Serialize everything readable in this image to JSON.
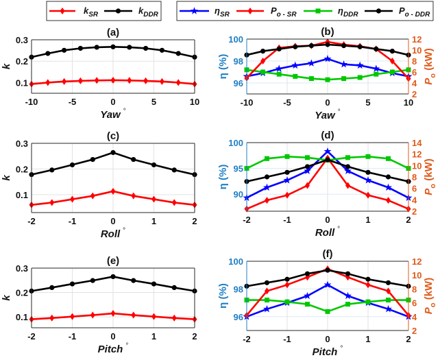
{
  "legends": {
    "left": [
      {
        "symbol": "k",
        "sub": "SR",
        "color": "#ff0000",
        "marker": "diamond"
      },
      {
        "symbol": "k",
        "sub": "DDR",
        "color": "#000000",
        "marker": "circle"
      }
    ],
    "right": [
      {
        "symbol": "η",
        "sub": "SR",
        "color": "#0000ff",
        "marker": "star"
      },
      {
        "symbol": "P",
        "sub": "o - SR",
        "color": "#ff0000",
        "marker": "diamond"
      },
      {
        "symbol": "η",
        "sub": "DDR",
        "color": "#00c800",
        "marker": "square"
      },
      {
        "symbol": "P",
        "sub": "o - DDR",
        "color": "#000000",
        "marker": "circle"
      }
    ]
  },
  "axis_colors": {
    "eta": "#1f7fc4",
    "power": "#e05a1a"
  },
  "chart_data": [
    {
      "panel": "a",
      "type": "line",
      "title": "(a)",
      "xlabel": "Yaw",
      "xunit": "°",
      "ylabel": "k",
      "x": [
        -10,
        -8,
        -6,
        -4,
        -2,
        0,
        2,
        4,
        6,
        8,
        10
      ],
      "xlim": [
        -10,
        10
      ],
      "xticks": [
        -10,
        -5,
        0,
        5,
        10
      ],
      "ylim": [
        0.05,
        0.3
      ],
      "yticks": [
        0.1,
        0.2,
        0.3
      ],
      "series": [
        {
          "name": "k_SR",
          "color": "#ff0000",
          "marker": "diamond",
          "axis": "left",
          "values": [
            0.093,
            0.1,
            0.105,
            0.108,
            0.11,
            0.111,
            0.11,
            0.108,
            0.105,
            0.1,
            0.093
          ]
        },
        {
          "name": "k_DDR",
          "color": "#000000",
          "marker": "circle",
          "axis": "left",
          "values": [
            0.219,
            0.236,
            0.251,
            0.26,
            0.265,
            0.267,
            0.265,
            0.26,
            0.251,
            0.236,
            0.219
          ]
        }
      ]
    },
    {
      "panel": "b",
      "type": "line",
      "title": "(b)",
      "xlabel": "Yaw",
      "xunit": "°",
      "ylabel": "η (%)",
      "ylabel_right": "P",
      "ylabel_right_sub": "o",
      "ylabel_right_unit": " (kW)",
      "x": [
        -10,
        -8,
        -6,
        -4,
        -2,
        0,
        2,
        4,
        6,
        8,
        10
      ],
      "xlim": [
        -10,
        10
      ],
      "xticks": [
        -10,
        -5,
        0,
        5,
        10
      ],
      "ylim": [
        95,
        100
      ],
      "yticks": [
        96,
        98,
        100
      ],
      "ylim_right": [
        2,
        12
      ],
      "yticks_right": [
        2,
        4,
        6,
        8,
        10,
        12
      ],
      "series": [
        {
          "name": "η_SR",
          "color": "#0000ff",
          "marker": "star",
          "axis": "left",
          "values": [
            96.6,
            96.9,
            97.3,
            97.6,
            97.8,
            98.2,
            97.7,
            97.6,
            97.3,
            96.9,
            96.6
          ]
        },
        {
          "name": "η_DDR",
          "color": "#00c800",
          "marker": "square",
          "axis": "left",
          "values": [
            97.2,
            97.0,
            96.8,
            96.6,
            96.4,
            96.3,
            96.4,
            96.5,
            96.8,
            97.0,
            97.2
          ]
        },
        {
          "name": "P_o-SR",
          "color": "#ff0000",
          "marker": "diamond",
          "axis": "right",
          "values": [
            4.9,
            8.0,
            10.4,
            10.7,
            10.8,
            11.5,
            11.0,
            10.7,
            10.2,
            8.0,
            4.8
          ]
        },
        {
          "name": "P_o-DDR",
          "color": "#000000",
          "marker": "circle",
          "axis": "right",
          "values": [
            9.1,
            9.8,
            10.2,
            10.6,
            10.8,
            11.0,
            10.8,
            10.6,
            10.2,
            9.8,
            9.1
          ]
        }
      ]
    },
    {
      "panel": "c",
      "type": "line",
      "title": "(c)",
      "xlabel": "Roll",
      "xunit": "°",
      "ylabel": "k",
      "x": [
        -2,
        -1.5,
        -1,
        -0.5,
        0,
        0.5,
        1,
        1.5,
        2
      ],
      "xlim": [
        -2,
        2
      ],
      "xticks": [
        -2,
        -1,
        0,
        1,
        2
      ],
      "ylim": [
        0.03,
        0.3
      ],
      "yticks": [
        0.1,
        0.2,
        0.3
      ],
      "series": [
        {
          "name": "k_SR",
          "color": "#ff0000",
          "marker": "diamond",
          "axis": "left",
          "values": [
            0.06,
            0.069,
            0.082,
            0.095,
            0.113,
            0.095,
            0.082,
            0.069,
            0.06
          ]
        },
        {
          "name": "k_DDR",
          "color": "#000000",
          "marker": "circle",
          "axis": "left",
          "values": [
            0.178,
            0.196,
            0.216,
            0.237,
            0.264,
            0.237,
            0.216,
            0.196,
            0.178
          ]
        }
      ]
    },
    {
      "panel": "d",
      "type": "line",
      "title": "(d)",
      "xlabel": "Roll",
      "xunit": "°",
      "ylabel": "η (%)",
      "ylabel_right": "P",
      "ylabel_right_sub": "o",
      "ylabel_right_unit": " (kW)",
      "x": [
        -2,
        -1.5,
        -1,
        -0.5,
        0,
        0.5,
        1,
        1.5,
        2
      ],
      "xlim": [
        -2,
        2
      ],
      "xticks": [
        -2,
        -1,
        0,
        1,
        2
      ],
      "ylim": [
        86.7,
        100
      ],
      "yticks": [
        90,
        95,
        100
      ],
      "ylim_right": [
        2,
        14
      ],
      "yticks_right": [
        2,
        4,
        6,
        8,
        10,
        12,
        14
      ],
      "series": [
        {
          "name": "η_SR",
          "color": "#0000ff",
          "marker": "star",
          "axis": "left",
          "values": [
            89.3,
            91.3,
            92.7,
            94.5,
            98.3,
            94.5,
            92.7,
            91.3,
            89.3
          ]
        },
        {
          "name": "η_DDR",
          "color": "#00c800",
          "marker": "square",
          "axis": "left",
          "values": [
            95.0,
            96.9,
            97.3,
            97.1,
            96.6,
            97.1,
            97.3,
            96.9,
            95.0
          ]
        },
        {
          "name": "P_o-SR",
          "color": "#ff0000",
          "marker": "diamond",
          "axis": "right",
          "values": [
            2.4,
            3.9,
            4.8,
            6.5,
            11.3,
            6.5,
            4.8,
            3.9,
            2.4
          ]
        },
        {
          "name": "P_o-DDR",
          "color": "#000000",
          "marker": "circle",
          "axis": "right",
          "values": [
            7.2,
            8.0,
            8.8,
            9.8,
            11.0,
            9.8,
            8.8,
            8.0,
            7.2
          ]
        }
      ]
    },
    {
      "panel": "e",
      "type": "line",
      "title": "(e)",
      "xlabel": "Pitch",
      "xunit": "°",
      "ylabel": "k",
      "x": [
        -2,
        -1.5,
        -1,
        -0.5,
        0,
        0.5,
        1,
        1.5,
        2
      ],
      "xlim": [
        -2,
        2
      ],
      "xticks": [
        -2,
        -1,
        0,
        1,
        2
      ],
      "ylim": [
        0.055,
        0.3
      ],
      "yticks": [
        0.1,
        0.2,
        0.3
      ],
      "series": [
        {
          "name": "k_SR",
          "color": "#ff0000",
          "marker": "diamond",
          "axis": "left",
          "values": [
            0.09,
            0.095,
            0.101,
            0.107,
            0.114,
            0.107,
            0.101,
            0.095,
            0.09
          ]
        },
        {
          "name": "k_DDR",
          "color": "#000000",
          "marker": "circle",
          "axis": "left",
          "values": [
            0.206,
            0.22,
            0.235,
            0.249,
            0.265,
            0.249,
            0.235,
            0.22,
            0.206
          ]
        }
      ]
    },
    {
      "panel": "f",
      "type": "line",
      "title": "(f)",
      "xlabel": "Pitch",
      "xunit": "°",
      "ylabel": "η (%)",
      "ylabel_right": "P",
      "ylabel_right_sub": "o",
      "ylabel_right_unit": " (kW)",
      "x": [
        -2,
        -1.5,
        -1,
        -0.5,
        0,
        0.5,
        1,
        1.5,
        2
      ],
      "xlim": [
        -2,
        2
      ],
      "xticks": [
        -2,
        -1,
        0,
        1,
        2
      ],
      "ylim": [
        95,
        100
      ],
      "yticks": [
        96,
        98,
        100
      ],
      "ylim_right": [
        2,
        12
      ],
      "yticks_right": [
        2,
        4,
        6,
        8,
        10,
        12
      ],
      "series": [
        {
          "name": "η_SR",
          "color": "#0000ff",
          "marker": "star",
          "axis": "left",
          "values": [
            96.0,
            96.55,
            97.0,
            97.5,
            98.3,
            97.5,
            97.0,
            96.55,
            96.0
          ]
        },
        {
          "name": "η_DDR",
          "color": "#00c800",
          "marker": "square",
          "axis": "left",
          "values": [
            97.2,
            97.2,
            97.07,
            96.9,
            96.37,
            96.9,
            97.07,
            97.2,
            97.2
          ]
        },
        {
          "name": "P_o-SR",
          "color": "#ff0000",
          "marker": "diamond",
          "axis": "right",
          "values": [
            4.2,
            7.7,
            8.6,
            9.7,
            10.9,
            9.7,
            8.6,
            7.7,
            4.2
          ]
        },
        {
          "name": "P_o-DDR",
          "color": "#000000",
          "marker": "circle",
          "axis": "right",
          "values": [
            8.4,
            8.9,
            9.4,
            10.2,
            10.7,
            10.2,
            9.4,
            8.9,
            8.4
          ]
        }
      ]
    }
  ]
}
